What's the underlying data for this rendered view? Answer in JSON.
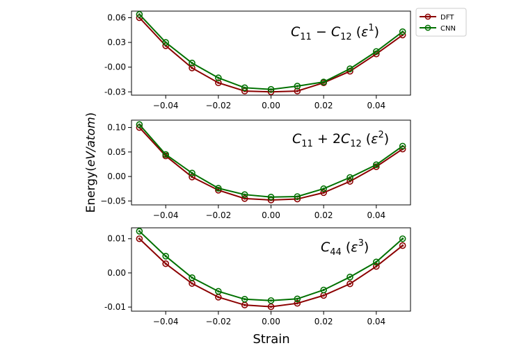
{
  "chart_data": {
    "type": "line",
    "xlabel": "Strain",
    "ylabel": "Energy(eV/atom)",
    "ylabel_plain": "Energy(",
    "ylabel_italic": "eV/atom",
    "ylabel_close": ")",
    "legend": [
      {
        "name": "DFT",
        "color": "#8b0000"
      },
      {
        "name": "CNN",
        "color": "#007000"
      }
    ],
    "panels": [
      {
        "annotation": {
          "name": "C11 - C12 (ε^1)",
          "parts": [
            "C",
            "11",
            " − ",
            "C",
            "12",
            " (",
            "ε",
            "1",
            ")"
          ]
        },
        "xticks": [
          -0.04,
          -0.02,
          0.0,
          0.02,
          0.04
        ],
        "xtick_labels": [
          "−0.04",
          "−0.02",
          "0.00",
          "0.02",
          "0.04"
        ],
        "yticks": [
          -0.03,
          0.0,
          0.03,
          0.06
        ],
        "ytick_labels": [
          "-0.03",
          "-0.00",
          "0.03",
          "0.06"
        ],
        "xlim": [
          -0.053,
          0.053
        ],
        "ylim": [
          -0.034,
          0.068
        ],
        "x": [
          -0.05,
          -0.04,
          -0.03,
          -0.02,
          -0.01,
          0.0,
          0.01,
          0.02,
          0.03,
          0.04,
          0.05
        ],
        "series": [
          {
            "name": "DFT",
            "values": [
              0.06,
              0.026,
              -0.001,
              -0.019,
              -0.029,
              -0.03,
              -0.029,
              -0.019,
              -0.005,
              0.016,
              0.039
            ]
          },
          {
            "name": "CNN",
            "values": [
              0.064,
              0.03,
              0.005,
              -0.013,
              -0.025,
              -0.027,
              -0.023,
              -0.018,
              -0.002,
              0.019,
              0.043
            ]
          }
        ]
      },
      {
        "annotation": {
          "name": "C11 + 2C12 (ε^2)",
          "parts": [
            "C",
            "11",
            " + 2",
            "C",
            "12",
            " (",
            "ε",
            "2",
            ")"
          ]
        },
        "xticks": [
          -0.04,
          -0.02,
          0.0,
          0.02,
          0.04
        ],
        "xtick_labels": [
          "−0.04",
          "−0.02",
          "0.00",
          "0.02",
          "0.04"
        ],
        "yticks": [
          -0.05,
          0.0,
          0.05,
          0.1
        ],
        "ytick_labels": [
          "−0.05",
          "0.00",
          "0.05",
          "0.10"
        ],
        "xlim": [
          -0.053,
          0.053
        ],
        "ylim": [
          -0.058,
          0.115
        ],
        "x": [
          -0.05,
          -0.04,
          -0.03,
          -0.02,
          -0.01,
          0.0,
          0.01,
          0.02,
          0.03,
          0.04,
          0.05
        ],
        "series": [
          {
            "name": "DFT",
            "values": [
              0.1,
              0.042,
              -0.001,
              -0.028,
              -0.045,
              -0.048,
              -0.046,
              -0.033,
              -0.01,
              0.02,
              0.056
            ]
          },
          {
            "name": "CNN",
            "values": [
              0.106,
              0.045,
              0.007,
              -0.024,
              -0.037,
              -0.042,
              -0.041,
              -0.025,
              -0.002,
              0.024,
              0.062
            ]
          }
        ]
      },
      {
        "annotation": {
          "name": "C44 (ε^3)",
          "parts": [
            "C",
            "44",
            "",
            "",
            "",
            " (",
            "ε",
            "3",
            ")"
          ]
        },
        "xticks": [
          -0.04,
          -0.02,
          0.0,
          0.02,
          0.04
        ],
        "xtick_labels": [
          "−0.04",
          "−0.02",
          "0.00",
          "0.02",
          "0.04"
        ],
        "yticks": [
          -0.01,
          0.0,
          0.01
        ],
        "ytick_labels": [
          "-0.01",
          "0.00",
          "0.01"
        ],
        "xlim": [
          -0.053,
          0.053
        ],
        "ylim": [
          -0.0112,
          0.0132
        ],
        "x": [
          -0.05,
          -0.04,
          -0.03,
          -0.02,
          -0.01,
          0.0,
          0.01,
          0.02,
          0.03,
          0.04,
          0.05
        ],
        "series": [
          {
            "name": "DFT",
            "values": [
              0.01,
              0.0027,
              -0.0031,
              -0.0071,
              -0.0094,
              -0.0099,
              -0.0089,
              -0.0066,
              -0.0032,
              0.0019,
              0.008
            ]
          },
          {
            "name": "CNN",
            "values": [
              0.0122,
              0.0049,
              -0.0014,
              -0.0054,
              -0.0077,
              -0.0081,
              -0.0076,
              -0.005,
              -0.0012,
              0.0032,
              0.01
            ]
          }
        ]
      }
    ]
  }
}
